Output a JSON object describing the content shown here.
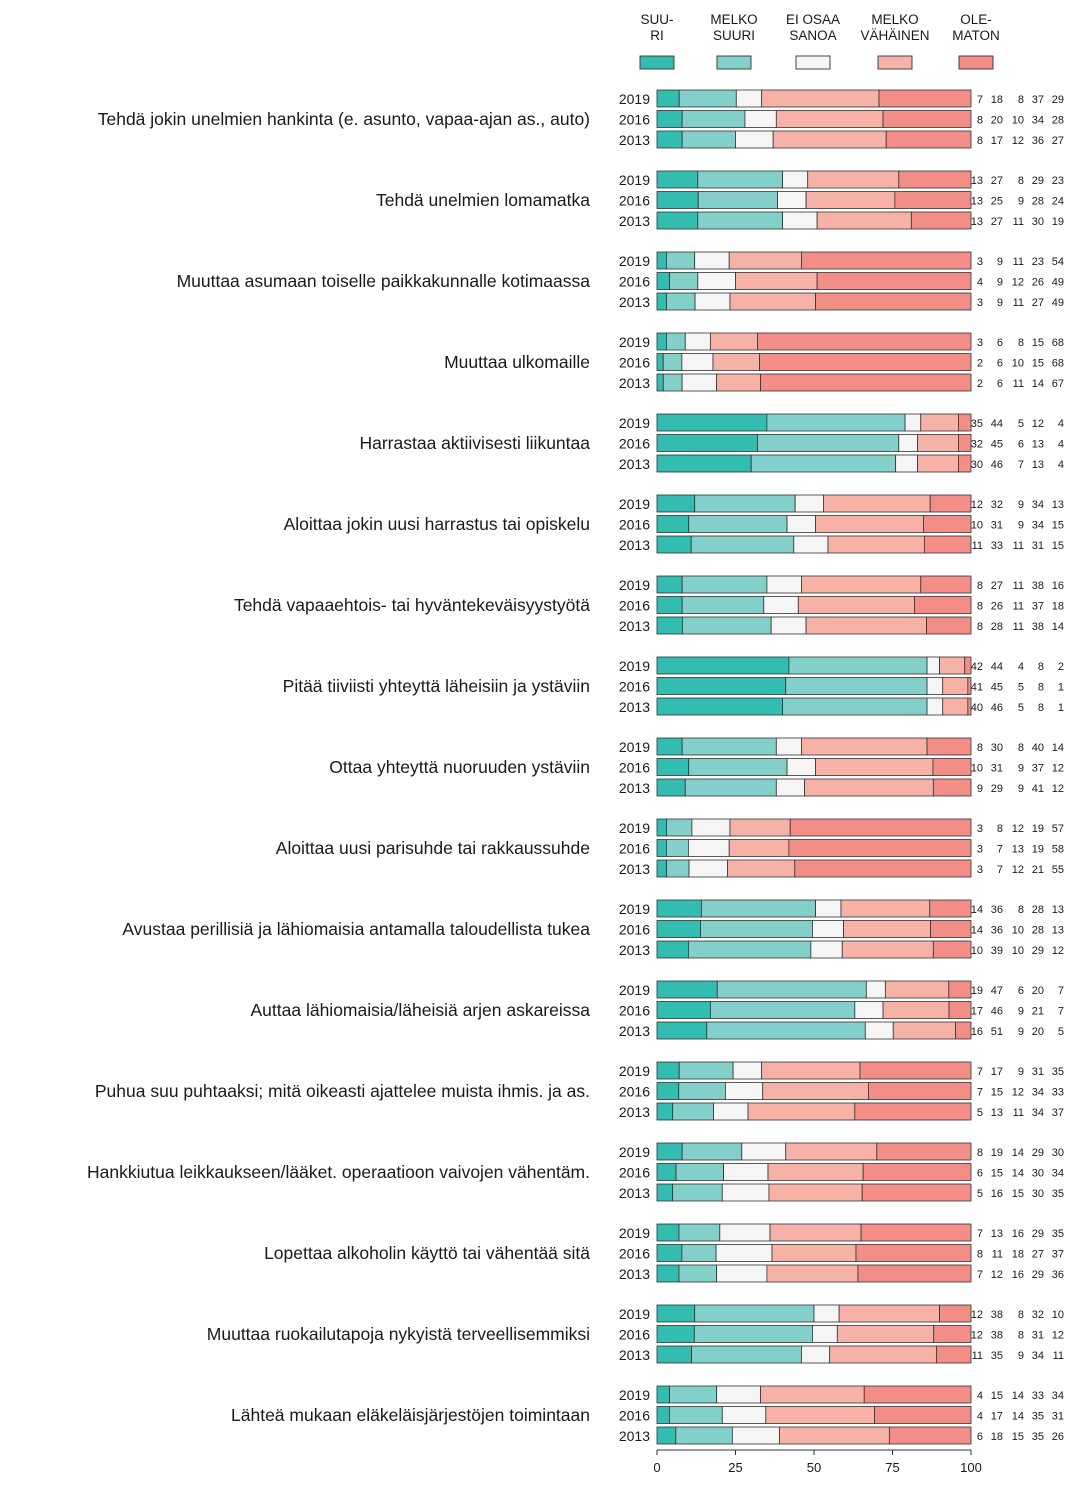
{
  "chart_data": {
    "type": "bar",
    "orientation": "horizontal-stacked-100",
    "series": [
      {
        "name": "SUU-\nRI",
        "color": "#33bcb0"
      },
      {
        "name": "MELKO\nSUURI",
        "color": "#82d0c9"
      },
      {
        "name": "EI OSAA\nSANOA",
        "color": "#f5f5f5"
      },
      {
        "name": "MELKO\nVÄHÄINEN",
        "color": "#f7b2a8"
      },
      {
        "name": "OLE-\nMATON",
        "color": "#f28d87"
      }
    ],
    "xlim": [
      0,
      100
    ],
    "x_ticks": [
      "0",
      "25",
      "50",
      "75",
      "100"
    ],
    "legend_position": "top",
    "categories": [
      {
        "label": "Tehdä jokin unelmien hankinta (e. asunto, vapaa-ajan as., auto)",
        "rows": [
          {
            "year": "2019",
            "values": [
              7,
              18,
              8,
              37,
              29
            ]
          },
          {
            "year": "2016",
            "values": [
              8,
              20,
              10,
              34,
              28
            ]
          },
          {
            "year": "2013",
            "values": [
              8,
              17,
              12,
              36,
              27
            ]
          }
        ]
      },
      {
        "label": "Tehdä unelmien lomamatka",
        "rows": [
          {
            "year": "2019",
            "values": [
              13,
              27,
              8,
              29,
              23
            ]
          },
          {
            "year": "2016",
            "values": [
              13,
              25,
              9,
              28,
              24
            ]
          },
          {
            "year": "2013",
            "values": [
              13,
              27,
              11,
              30,
              19
            ]
          }
        ]
      },
      {
        "label": "Muuttaa asumaan toiselle paikkakunnalle kotimaassa",
        "rows": [
          {
            "year": "2019",
            "values": [
              3,
              9,
              11,
              23,
              54
            ]
          },
          {
            "year": "2016",
            "values": [
              4,
              9,
              12,
              26,
              49
            ]
          },
          {
            "year": "2013",
            "values": [
              3,
              9,
              11,
              27,
              49
            ]
          }
        ]
      },
      {
        "label": "Muuttaa ulkomaille",
        "rows": [
          {
            "year": "2019",
            "values": [
              3,
              6,
              8,
              15,
              68
            ]
          },
          {
            "year": "2016",
            "values": [
              2,
              6,
              10,
              15,
              68
            ]
          },
          {
            "year": "2013",
            "values": [
              2,
              6,
              11,
              14,
              67
            ]
          }
        ]
      },
      {
        "label": "Harrastaa aktiivisesti liikuntaa",
        "rows": [
          {
            "year": "2019",
            "values": [
              35,
              44,
              5,
              12,
              4
            ]
          },
          {
            "year": "2016",
            "values": [
              32,
              45,
              6,
              13,
              4
            ]
          },
          {
            "year": "2013",
            "values": [
              30,
              46,
              7,
              13,
              4
            ]
          }
        ]
      },
      {
        "label": "Aloittaa jokin uusi harrastus tai opiskelu",
        "rows": [
          {
            "year": "2019",
            "values": [
              12,
              32,
              9,
              34,
              13
            ]
          },
          {
            "year": "2016",
            "values": [
              10,
              31,
              9,
              34,
              15
            ]
          },
          {
            "year": "2013",
            "values": [
              11,
              33,
              11,
              31,
              15
            ]
          }
        ]
      },
      {
        "label": "Tehdä vapaaehtois- tai hyväntekeväisyystyötä",
        "rows": [
          {
            "year": "2019",
            "values": [
              8,
              27,
              11,
              38,
              16
            ]
          },
          {
            "year": "2016",
            "values": [
              8,
              26,
              11,
              37,
              18
            ]
          },
          {
            "year": "2013",
            "values": [
              8,
              28,
              11,
              38,
              14
            ]
          }
        ]
      },
      {
        "label": "Pitää tiiviisti yhteyttä läheisiin ja ystäviin",
        "rows": [
          {
            "year": "2019",
            "values": [
              42,
              44,
              4,
              8,
              2
            ]
          },
          {
            "year": "2016",
            "values": [
              41,
              45,
              5,
              8,
              1
            ]
          },
          {
            "year": "2013",
            "values": [
              40,
              46,
              5,
              8,
              1
            ]
          }
        ]
      },
      {
        "label": "Ottaa yhteyttä nuoruuden ystäviin",
        "rows": [
          {
            "year": "2019",
            "values": [
              8,
              30,
              8,
              40,
              14
            ]
          },
          {
            "year": "2016",
            "values": [
              10,
              31,
              9,
              37,
              12
            ]
          },
          {
            "year": "2013",
            "values": [
              9,
              29,
              9,
              41,
              12
            ]
          }
        ]
      },
      {
        "label": "Aloittaa uusi parisuhde tai rakkaussuhde",
        "rows": [
          {
            "year": "2019",
            "values": [
              3,
              8,
              12,
              19,
              57
            ]
          },
          {
            "year": "2016",
            "values": [
              3,
              7,
              13,
              19,
              58
            ]
          },
          {
            "year": "2013",
            "values": [
              3,
              7,
              12,
              21,
              55
            ]
          }
        ]
      },
      {
        "label": "Avustaa perillisiä ja lähiomaisia antamalla taloudellista tukea",
        "rows": [
          {
            "year": "2019",
            "values": [
              14,
              36,
              8,
              28,
              13
            ]
          },
          {
            "year": "2016",
            "values": [
              14,
              36,
              10,
              28,
              13
            ]
          },
          {
            "year": "2013",
            "values": [
              10,
              39,
              10,
              29,
              12
            ]
          }
        ]
      },
      {
        "label": "Auttaa lähiomaisia/läheisiä arjen askareissa",
        "rows": [
          {
            "year": "2019",
            "values": [
              19,
              47,
              6,
              20,
              7
            ]
          },
          {
            "year": "2016",
            "values": [
              17,
              46,
              9,
              21,
              7
            ]
          },
          {
            "year": "2013",
            "values": [
              16,
              51,
              9,
              20,
              5
            ]
          }
        ]
      },
      {
        "label": "Puhua suu puhtaaksi; mitä oikeasti ajattelee muista ihmis. ja as.",
        "rows": [
          {
            "year": "2019",
            "values": [
              7,
              17,
              9,
              31,
              35
            ]
          },
          {
            "year": "2016",
            "values": [
              7,
              15,
              12,
              34,
              33
            ]
          },
          {
            "year": "2013",
            "values": [
              5,
              13,
              11,
              34,
              37
            ]
          }
        ]
      },
      {
        "label": "Hankkiutua leikkaukseen/lääket. operaatioon vaivojen vähentäm.",
        "rows": [
          {
            "year": "2019",
            "values": [
              8,
              19,
              14,
              29,
              30
            ]
          },
          {
            "year": "2016",
            "values": [
              6,
              15,
              14,
              30,
              34
            ]
          },
          {
            "year": "2013",
            "values": [
              5,
              16,
              15,
              30,
              35
            ]
          }
        ]
      },
      {
        "label": "Lopettaa alkoholin käyttö tai vähentää sitä",
        "rows": [
          {
            "year": "2019",
            "values": [
              7,
              13,
              16,
              29,
              35
            ]
          },
          {
            "year": "2016",
            "values": [
              8,
              11,
              18,
              27,
              37
            ]
          },
          {
            "year": "2013",
            "values": [
              7,
              12,
              16,
              29,
              36
            ]
          }
        ]
      },
      {
        "label": "Muuttaa ruokailutapoja nykyistä terveellisemmiksi",
        "rows": [
          {
            "year": "2019",
            "values": [
              12,
              38,
              8,
              32,
              10
            ]
          },
          {
            "year": "2016",
            "values": [
              12,
              38,
              8,
              31,
              12
            ]
          },
          {
            "year": "2013",
            "values": [
              11,
              35,
              9,
              34,
              11
            ]
          }
        ]
      },
      {
        "label": "Lähteä mukaan eläkeläisjärjestöjen toimintaan",
        "rows": [
          {
            "year": "2019",
            "values": [
              4,
              15,
              14,
              33,
              34
            ]
          },
          {
            "year": "2016",
            "values": [
              4,
              17,
              14,
              35,
              31
            ]
          },
          {
            "year": "2013",
            "values": [
              6,
              18,
              15,
              35,
              26
            ]
          }
        ]
      }
    ]
  }
}
